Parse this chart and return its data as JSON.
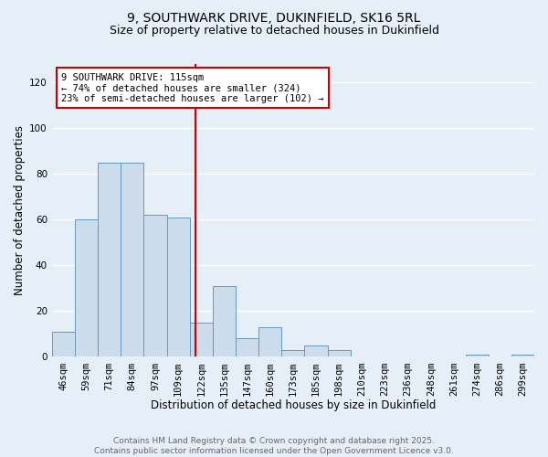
{
  "title_line1": "9, SOUTHWARK DRIVE, DUKINFIELD, SK16 5RL",
  "title_line2": "Size of property relative to detached houses in Dukinfield",
  "xlabel": "Distribution of detached houses by size in Dukinfield",
  "ylabel": "Number of detached properties",
  "categories": [
    "46sqm",
    "59sqm",
    "71sqm",
    "84sqm",
    "97sqm",
    "109sqm",
    "122sqm",
    "135sqm",
    "147sqm",
    "160sqm",
    "173sqm",
    "185sqm",
    "198sqm",
    "210sqm",
    "223sqm",
    "236sqm",
    "248sqm",
    "261sqm",
    "274sqm",
    "286sqm",
    "299sqm"
  ],
  "values": [
    11,
    60,
    85,
    85,
    62,
    61,
    15,
    31,
    8,
    13,
    3,
    5,
    3,
    0,
    0,
    0,
    0,
    0,
    1,
    0,
    1
  ],
  "bar_color": "#cddcec",
  "bar_edge_color": "#6699bb",
  "background_color": "#e6eef7",
  "grid_color": "#ffffff",
  "vline_x": 5.77,
  "vline_color": "#cc0000",
  "annotation_text": "9 SOUTHWARK DRIVE: 115sqm\n← 74% of detached houses are smaller (324)\n23% of semi-detached houses are larger (102) →",
  "annotation_box_color": "#ffffff",
  "annotation_box_edge": "#cc0000",
  "ylim": [
    0,
    128
  ],
  "yticks": [
    0,
    20,
    40,
    60,
    80,
    100,
    120
  ],
  "footer_line1": "Contains HM Land Registry data © Crown copyright and database right 2025.",
  "footer_line2": "Contains public sector information licensed under the Open Government Licence v3.0.",
  "title_fontsize": 10,
  "subtitle_fontsize": 9,
  "axis_label_fontsize": 8.5,
  "tick_fontsize": 7.5,
  "annotation_fontsize": 7.5,
  "footer_fontsize": 6.5
}
